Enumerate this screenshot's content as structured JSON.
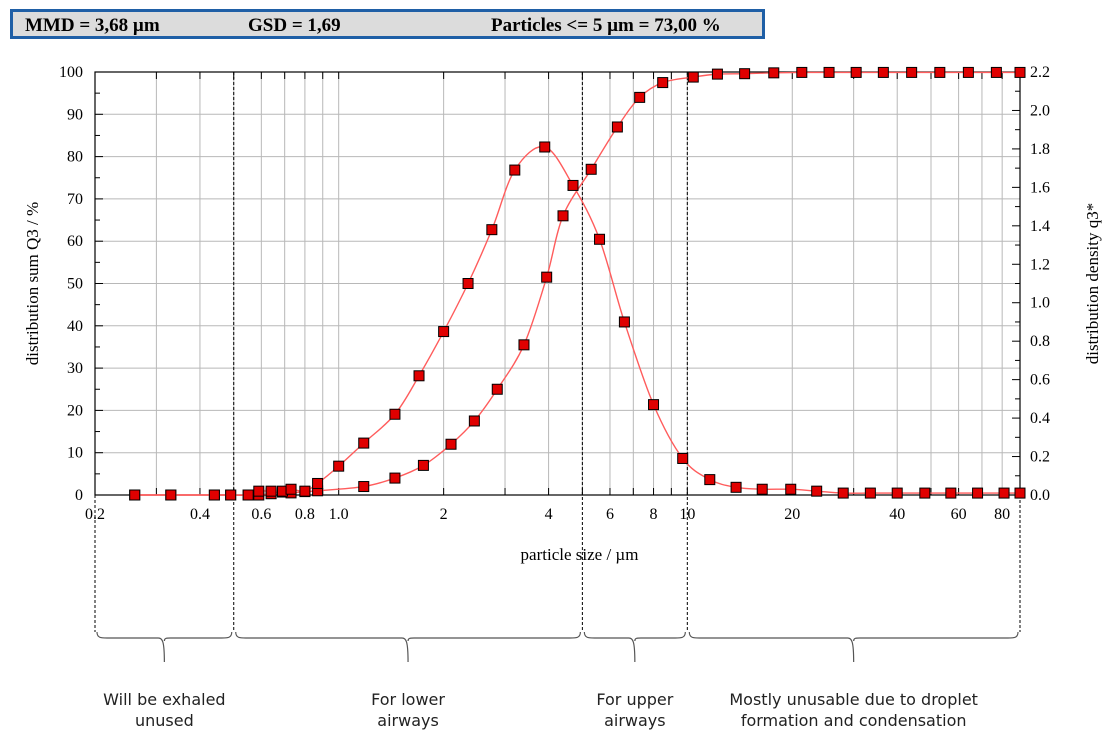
{
  "header": {
    "mmd": "MMD = 3,68 µm",
    "gsd": "GSD = 1,69",
    "fraction": "Particles <= 5 µm = 73,00 %"
  },
  "regions": [
    {
      "label_line1": "Will be exhaled",
      "label_line2": "unused",
      "from": 0.2,
      "to": 0.5
    },
    {
      "label_line1": "For lower",
      "label_line2": "airways",
      "from": 0.5,
      "to": 5
    },
    {
      "label_line1": "For upper",
      "label_line2": "airways",
      "from": 5,
      "to": 10
    },
    {
      "label_line1": "Mostly unusable due to droplet",
      "label_line2": "formation and condensation",
      "from": 10,
      "to": 90
    }
  ],
  "chart_data": {
    "type": "line",
    "xlabel": "particle size / µm",
    "ylabel_left": "distribution sum Q3 / %",
    "ylabel_right": "distribution density q3*",
    "x_scale": "log",
    "xlim": [
      0.2,
      90
    ],
    "ylim_left": [
      0,
      100
    ],
    "ylim_right": [
      0,
      2.2
    ],
    "x_tick_labels": [
      "0.2",
      "0.4",
      "0.6",
      "0.8",
      "1.0",
      "2",
      "4",
      "6",
      "8",
      "10",
      "20",
      "40",
      "60",
      "80"
    ],
    "x_tick_values": [
      0.2,
      0.4,
      0.6,
      0.8,
      1.0,
      2,
      4,
      6,
      8,
      10,
      20,
      40,
      60,
      80
    ],
    "y_left_ticks": [
      "0",
      "10",
      "20",
      "30",
      "40",
      "50",
      "60",
      "70",
      "80",
      "90",
      "100"
    ],
    "y_right_ticks": [
      "0.0",
      "0.2",
      "0.4",
      "0.6",
      "0.8",
      "1.0",
      "1.2",
      "1.4",
      "1.6",
      "1.8",
      "2.0",
      "2.2"
    ],
    "grid": true,
    "line_color": "#ff5c5c",
    "marker_color": "#e00000",
    "series": [
      {
        "axis": "left",
        "x": [
          0.26,
          0.33,
          0.44,
          0.49,
          0.55,
          0.59,
          0.64,
          0.69,
          0.73,
          0.8,
          0.87,
          1.18,
          1.45,
          1.75,
          2.1,
          2.45,
          2.85,
          3.4,
          3.95,
          4.4,
          5.3,
          6.3,
          7.3,
          8.5,
          10.4,
          12.2,
          14.6,
          17.7,
          21.3,
          25.5,
          30.5,
          36.5,
          44,
          53,
          64,
          77,
          90
        ],
        "y": [
          0,
          0,
          0,
          0,
          0,
          0,
          0.3,
          0.7,
          0.5,
          0.8,
          1.0,
          2.0,
          4.0,
          7.0,
          12.0,
          17.5,
          25.0,
          35.5,
          51.5,
          66.0,
          77.0,
          87.0,
          94.0,
          97.5,
          98.8,
          99.5,
          99.6,
          99.8,
          99.9,
          99.9,
          99.9,
          99.9,
          99.9,
          99.9,
          99.9,
          99.9,
          99.9
        ]
      },
      {
        "axis": "right",
        "x": [
          0.26,
          0.33,
          0.44,
          0.49,
          0.55,
          0.59,
          0.64,
          0.69,
          0.73,
          0.8,
          0.87,
          1.0,
          1.18,
          1.45,
          1.7,
          2.0,
          2.35,
          2.75,
          3.2,
          3.9,
          4.7,
          5.6,
          6.6,
          8.0,
          9.7,
          11.6,
          13.8,
          16.4,
          19.8,
          23.5,
          28,
          33.5,
          40,
          48,
          57,
          68,
          81,
          90
        ],
        "y": [
          0,
          0,
          0,
          0,
          0,
          0.02,
          0.02,
          0.02,
          0.03,
          0.02,
          0.06,
          0.15,
          0.27,
          0.42,
          0.62,
          0.85,
          1.1,
          1.38,
          1.69,
          1.81,
          1.61,
          1.33,
          0.9,
          0.47,
          0.19,
          0.08,
          0.04,
          0.03,
          0.03,
          0.02,
          0.01,
          0.01,
          0.01,
          0.01,
          0.01,
          0.01,
          0.01,
          0.01
        ]
      }
    ]
  }
}
